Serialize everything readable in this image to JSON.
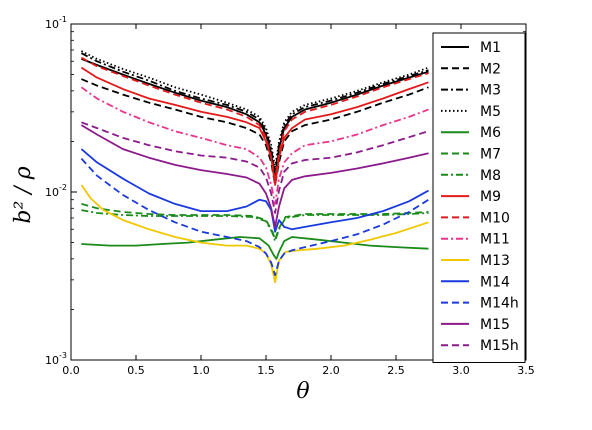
{
  "chart_data": {
    "type": "line",
    "title": "",
    "xlabel": "θ",
    "ylabel": "b² / ρ",
    "xlim": [
      0.0,
      3.5
    ],
    "ylim": [
      0.001,
      0.1
    ],
    "yscale": "log",
    "grid": false,
    "legend_position": "right",
    "x_ticks": [
      "0.0",
      "0.5",
      "1.0",
      "1.5",
      "2.0",
      "2.5",
      "3.0",
      "3.5"
    ],
    "y_ticks": [
      {
        "base": "10",
        "exp": "-3"
      },
      {
        "base": "10",
        "exp": "-2"
      },
      {
        "base": "10",
        "exp": "-1"
      }
    ],
    "series": [
      {
        "name": "M1",
        "color": "#000000",
        "dash": "solid",
        "x": [
          0.08,
          0.2,
          0.4,
          0.6,
          0.8,
          1.0,
          1.2,
          1.35,
          1.45,
          1.5,
          1.54,
          1.57,
          1.6,
          1.64,
          1.7,
          1.8,
          2.0,
          2.2,
          2.4,
          2.6,
          2.75
        ],
        "y": [
          0.062,
          0.057,
          0.05,
          0.044,
          0.039,
          0.035,
          0.032,
          0.029,
          0.026,
          0.022,
          0.017,
          0.012,
          0.018,
          0.024,
          0.028,
          0.031,
          0.034,
          0.038,
          0.043,
          0.048,
          0.052
        ]
      },
      {
        "name": "M2",
        "color": "#000000",
        "dash": "dashed",
        "x": [
          0.08,
          0.2,
          0.4,
          0.6,
          0.8,
          1.0,
          1.2,
          1.35,
          1.45,
          1.5,
          1.54,
          1.57,
          1.6,
          1.64,
          1.7,
          1.8,
          2.0,
          2.2,
          2.4,
          2.6,
          2.75
        ],
        "y": [
          0.047,
          0.043,
          0.038,
          0.034,
          0.031,
          0.028,
          0.026,
          0.024,
          0.022,
          0.019,
          0.015,
          0.011,
          0.015,
          0.02,
          0.023,
          0.025,
          0.027,
          0.03,
          0.034,
          0.038,
          0.042
        ]
      },
      {
        "name": "M3",
        "color": "#000000",
        "dash": "dashdot",
        "x": [
          0.08,
          0.2,
          0.4,
          0.6,
          0.8,
          1.0,
          1.2,
          1.35,
          1.45,
          1.5,
          1.54,
          1.57,
          1.6,
          1.64,
          1.7,
          1.8,
          2.0,
          2.2,
          2.4,
          2.6,
          2.75
        ],
        "y": [
          0.067,
          0.06,
          0.052,
          0.046,
          0.04,
          0.036,
          0.033,
          0.03,
          0.027,
          0.023,
          0.018,
          0.013,
          0.019,
          0.025,
          0.029,
          0.032,
          0.035,
          0.039,
          0.044,
          0.049,
          0.053
        ]
      },
      {
        "name": "M5",
        "color": "#000000",
        "dash": "dotted",
        "x": [
          0.08,
          0.2,
          0.4,
          0.6,
          0.8,
          1.0,
          1.2,
          1.35,
          1.45,
          1.5,
          1.54,
          1.57,
          1.6,
          1.64,
          1.7,
          1.8,
          2.0,
          2.2,
          2.4,
          2.6,
          2.75
        ],
        "y": [
          0.069,
          0.062,
          0.054,
          0.048,
          0.042,
          0.038,
          0.034,
          0.031,
          0.028,
          0.024,
          0.019,
          0.014,
          0.02,
          0.026,
          0.03,
          0.033,
          0.036,
          0.04,
          0.045,
          0.05,
          0.055
        ]
      },
      {
        "name": "M6",
        "color": "#1a8a1a",
        "dash": "solid",
        "x": [
          0.08,
          0.3,
          0.5,
          0.7,
          0.9,
          1.1,
          1.3,
          1.45,
          1.52,
          1.56,
          1.58,
          1.6,
          1.64,
          1.7,
          1.9,
          2.1,
          2.3,
          2.5,
          2.75
        ],
        "y": [
          0.0049,
          0.0048,
          0.0048,
          0.0049,
          0.005,
          0.0052,
          0.0054,
          0.0053,
          0.0048,
          0.0042,
          0.004,
          0.0044,
          0.0051,
          0.0054,
          0.0052,
          0.005,
          0.0048,
          0.0047,
          0.0046
        ]
      },
      {
        "name": "M7",
        "color": "#1a8a1a",
        "dash": "dashed",
        "x": [
          0.08,
          0.2,
          0.4,
          0.6,
          0.8,
          1.0,
          1.2,
          1.4,
          1.5,
          1.55,
          1.57,
          1.6,
          1.65,
          1.8,
          2.0,
          2.2,
          2.4,
          2.6,
          2.75
        ],
        "y": [
          0.0085,
          0.008,
          0.0076,
          0.0074,
          0.0073,
          0.0073,
          0.0073,
          0.0072,
          0.0068,
          0.0058,
          0.0052,
          0.0061,
          0.0071,
          0.0074,
          0.0074,
          0.0074,
          0.0074,
          0.0075,
          0.0076
        ]
      },
      {
        "name": "M8",
        "color": "#1a8a1a",
        "dash": "dashdot",
        "x": [
          0.08,
          0.2,
          0.4,
          0.6,
          0.8,
          1.0,
          1.2,
          1.4,
          1.5,
          1.55,
          1.57,
          1.6,
          1.65,
          1.8,
          2.0,
          2.2,
          2.4,
          2.6,
          2.75
        ],
        "y": [
          0.0078,
          0.0075,
          0.0073,
          0.0072,
          0.0072,
          0.0072,
          0.0072,
          0.0071,
          0.0067,
          0.0057,
          0.0051,
          0.006,
          0.007,
          0.0073,
          0.0073,
          0.0073,
          0.0073,
          0.0074,
          0.0075
        ]
      },
      {
        "name": "M9",
        "color": "#e41a1a",
        "dash": "solid",
        "x": [
          0.08,
          0.2,
          0.4,
          0.6,
          0.8,
          1.0,
          1.2,
          1.35,
          1.45,
          1.5,
          1.54,
          1.57,
          1.6,
          1.64,
          1.7,
          1.8,
          2.0,
          2.2,
          2.4,
          2.6,
          2.75
        ],
        "y": [
          0.055,
          0.048,
          0.041,
          0.036,
          0.033,
          0.03,
          0.028,
          0.026,
          0.024,
          0.02,
          0.016,
          0.011,
          0.016,
          0.021,
          0.024,
          0.027,
          0.029,
          0.032,
          0.036,
          0.041,
          0.045
        ]
      },
      {
        "name": "M10",
        "color": "#e41a1a",
        "dash": "dashed",
        "x": [
          0.08,
          0.2,
          0.4,
          0.6,
          0.8,
          1.0,
          1.2,
          1.35,
          1.45,
          1.5,
          1.54,
          1.57,
          1.6,
          1.64,
          1.7,
          1.8,
          2.0,
          2.2,
          2.4,
          2.6,
          2.75
        ],
        "y": [
          0.063,
          0.056,
          0.049,
          0.043,
          0.038,
          0.034,
          0.031,
          0.028,
          0.025,
          0.021,
          0.016,
          0.012,
          0.017,
          0.023,
          0.027,
          0.03,
          0.033,
          0.037,
          0.042,
          0.047,
          0.051
        ]
      },
      {
        "name": "M11",
        "color": "#e8358c",
        "dash": "dashdot",
        "x": [
          0.08,
          0.2,
          0.4,
          0.6,
          0.8,
          1.0,
          1.2,
          1.35,
          1.45,
          1.5,
          1.54,
          1.57,
          1.6,
          1.64,
          1.7,
          1.8,
          2.0,
          2.2,
          2.4,
          2.6,
          2.75
        ],
        "y": [
          0.042,
          0.036,
          0.03,
          0.026,
          0.023,
          0.021,
          0.019,
          0.018,
          0.016,
          0.014,
          0.011,
          0.0085,
          0.012,
          0.015,
          0.017,
          0.019,
          0.02,
          0.022,
          0.025,
          0.028,
          0.031
        ]
      },
      {
        "name": "M13",
        "color": "#f0c800",
        "dash": "solid",
        "x": [
          0.08,
          0.15,
          0.25,
          0.4,
          0.6,
          0.8,
          1.0,
          1.2,
          1.35,
          1.45,
          1.5,
          1.54,
          1.57,
          1.6,
          1.65,
          1.75,
          1.9,
          2.1,
          2.3,
          2.5,
          2.75
        ],
        "y": [
          0.011,
          0.0092,
          0.0078,
          0.0068,
          0.006,
          0.0054,
          0.005,
          0.0048,
          0.0048,
          0.0046,
          0.0043,
          0.0037,
          0.0029,
          0.0039,
          0.0044,
          0.0045,
          0.0046,
          0.0048,
          0.0052,
          0.0057,
          0.0066
        ]
      },
      {
        "name": "M14",
        "color": "#1a3ae0",
        "dash": "solid",
        "x": [
          0.08,
          0.2,
          0.4,
          0.6,
          0.8,
          1.0,
          1.2,
          1.35,
          1.45,
          1.5,
          1.54,
          1.57,
          1.6,
          1.64,
          1.7,
          1.8,
          2.0,
          2.2,
          2.4,
          2.6,
          2.75
        ],
        "y": [
          0.018,
          0.015,
          0.012,
          0.0098,
          0.0085,
          0.0077,
          0.0077,
          0.0082,
          0.009,
          0.0088,
          0.0078,
          0.0058,
          0.0068,
          0.0062,
          0.006,
          0.0062,
          0.0066,
          0.007,
          0.0077,
          0.0088,
          0.0102
        ]
      },
      {
        "name": "M14h",
        "color": "#1a3ae0",
        "dash": "dashed",
        "x": [
          0.08,
          0.2,
          0.4,
          0.6,
          0.8,
          1.0,
          1.2,
          1.35,
          1.45,
          1.5,
          1.54,
          1.57,
          1.6,
          1.64,
          1.7,
          1.8,
          2.0,
          2.2,
          2.4,
          2.6,
          2.75
        ],
        "y": [
          0.0158,
          0.0125,
          0.0096,
          0.0078,
          0.0066,
          0.0058,
          0.0054,
          0.0051,
          0.0047,
          0.0043,
          0.0038,
          0.0032,
          0.0039,
          0.0043,
          0.0045,
          0.0047,
          0.0051,
          0.0056,
          0.0064,
          0.0076,
          0.009
        ]
      },
      {
        "name": "M15",
        "color": "#8b1a8b",
        "dash": "solid",
        "x": [
          0.08,
          0.2,
          0.4,
          0.6,
          0.8,
          1.0,
          1.2,
          1.35,
          1.45,
          1.5,
          1.54,
          1.57,
          1.6,
          1.64,
          1.7,
          1.8,
          2.0,
          2.2,
          2.4,
          2.6,
          2.75
        ],
        "y": [
          0.025,
          0.022,
          0.018,
          0.016,
          0.0145,
          0.0135,
          0.0128,
          0.0122,
          0.0112,
          0.0098,
          0.008,
          0.0062,
          0.0082,
          0.0105,
          0.0118,
          0.0124,
          0.013,
          0.0138,
          0.0148,
          0.016,
          0.017
        ]
      },
      {
        "name": "M15h",
        "color": "#8b1a8b",
        "dash": "dashed",
        "x": [
          0.08,
          0.2,
          0.4,
          0.6,
          0.8,
          1.0,
          1.2,
          1.35,
          1.45,
          1.5,
          1.54,
          1.57,
          1.6,
          1.64,
          1.7,
          1.8,
          2.0,
          2.2,
          2.4,
          2.6,
          2.75
        ],
        "y": [
          0.026,
          0.024,
          0.021,
          0.019,
          0.0175,
          0.0165,
          0.016,
          0.0152,
          0.014,
          0.0122,
          0.0098,
          0.0075,
          0.0102,
          0.0132,
          0.0148,
          0.0155,
          0.016,
          0.0172,
          0.019,
          0.0212,
          0.023
        ]
      }
    ]
  }
}
